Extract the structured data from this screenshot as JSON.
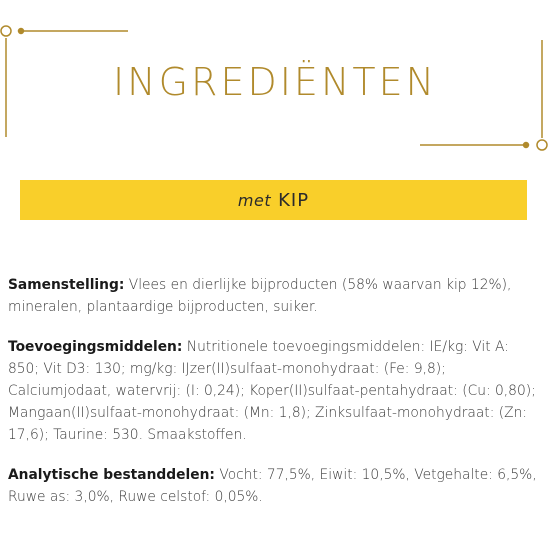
{
  "colors": {
    "gold": "#b08a2c",
    "banner_yellow": "#f9cf2a",
    "text": "#3a3a3a"
  },
  "header": {
    "title": "INGREDIËNTEN"
  },
  "banner": {
    "prefix": "met",
    "name": "KIP"
  },
  "sections": [
    {
      "label": "Samenstelling:",
      "text": " Vlees en dierlijke bijproducten (58% waarvan kip 12%), mineralen, plantaardige bijproducten, suiker."
    },
    {
      "label": "Toevoegingsmiddelen:",
      "text": " Nutritionele toevoegingsmiddelen: IE/kg: Vit A: 850; Vit D3: 130; mg/kg: IJzer(II)sulfaat-monohydraat: (Fe: 9,8); Calciumjodaat, watervrij: (I: 0,24); Koper(II)sulfaat-pentahydraat: (Cu: 0,80); Mangaan(II)sulfaat-monohydraat: (Mn: 1,8); Zinksulfaat-monohydraat: (Zn: 17,6); Taurine: 530. Smaakstoffen."
    },
    {
      "label": "Analytische bestanddelen:",
      "text": " Vocht: 77,5%, Eiwit: 10,5%, Vetgehalte: 6,5%, Ruwe as: 3,0%, Ruwe celstof: 0,05%."
    }
  ]
}
